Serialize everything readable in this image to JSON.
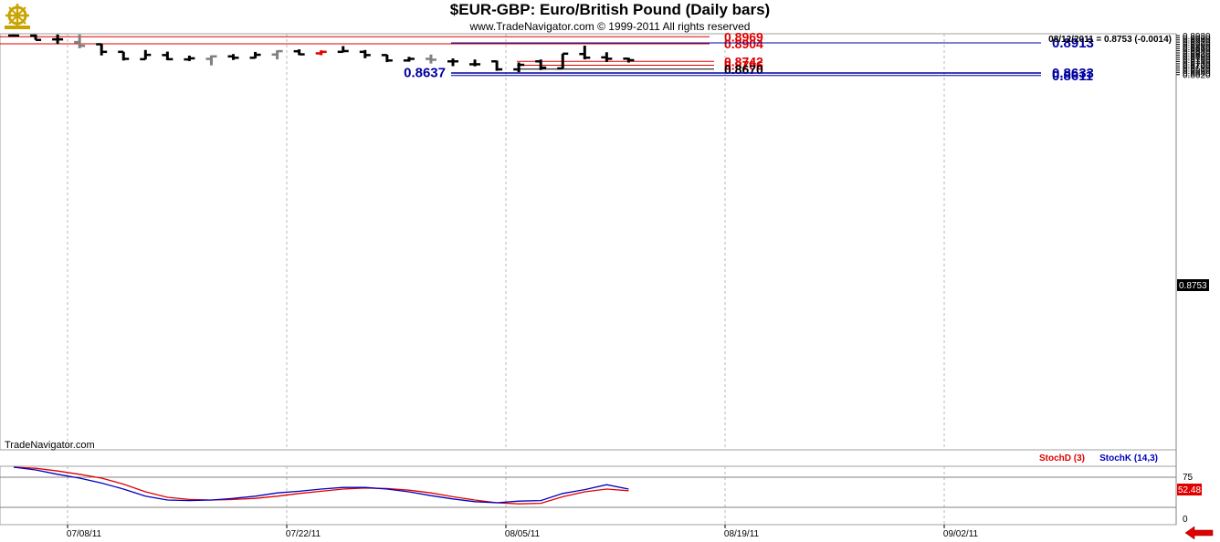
{
  "header": {
    "title": "$EUR-GBP:  Euro/British Pound  (Daily bars)",
    "subtitle": "www.TradeNavigator.com © 1999-2011 All rights reserved",
    "logo_icon": "golden-ship-wheel-icon"
  },
  "watermark": "TradeNavigator.com",
  "last_bar_readout": "08/12/2011 = 0.8753 (-0.0014)",
  "price_axis": {
    "ticks": [
      "0.8980",
      "0.8960",
      "0.8940",
      "0.8920",
      "0.8900",
      "0.8880",
      "0.8860",
      "0.8840",
      "0.8820",
      "0.8800",
      "0.8780",
      "0.8760",
      "0.8740",
      "0.8720",
      "0.8700",
      "0.8680",
      "0.8660",
      "0.8640",
      "0.8620"
    ],
    "current_price_label": "0.8753"
  },
  "x_axis": {
    "ticks": [
      "07/08/11",
      "07/22/11",
      "08/05/11",
      "08/19/11",
      "09/02/11"
    ]
  },
  "colors": {
    "up_bar": "#000000",
    "gray_bar": "#808080",
    "red_bar": "#e00000",
    "red_level": "#e00000",
    "blue_level": "#0000a0",
    "black_level": "#000000",
    "stochD": "#e00000",
    "stochK": "#0000c0",
    "nav_arrow": "#e00000"
  },
  "levels": [
    {
      "value": 0.8969,
      "label": "0.8969",
      "color": "red"
    },
    {
      "value": 0.8904,
      "label": "0.8904",
      "color": "red"
    },
    {
      "value": 0.8913,
      "label": "0.8913",
      "color": "blue"
    },
    {
      "value": 0.8742,
      "label": "0.8742",
      "color": "red"
    },
    {
      "value": 0.8706,
      "label": "0.8706",
      "color": "red"
    },
    {
      "value": 0.867,
      "label": "0.8670",
      "color": "black"
    },
    {
      "value": 0.8637,
      "label": "0.8637",
      "color": "blue"
    },
    {
      "value": 0.8633,
      "label": "0.8633",
      "color": "blue"
    },
    {
      "value": 0.8611,
      "label": "0.8611",
      "color": "blue"
    }
  ],
  "indicator": {
    "stochD_label": "StochD (3)",
    "stochK_label": "StochK (14,3)",
    "ticks": [
      "75",
      "0"
    ],
    "current_value_label": "52.48"
  },
  "chart_data": {
    "type": "ohlc",
    "title": "$EUR-GBP:  Euro/British Pound  (Daily bars)",
    "x_ticks": [
      "07/08/11",
      "07/22/11",
      "08/05/11",
      "08/19/11",
      "09/02/11"
    ],
    "ylim": [
      0.8605,
      0.8985
    ],
    "bars": [
      {
        "o": 0.898,
        "h": 0.899,
        "l": 0.8975,
        "c": 0.898,
        "color": "black"
      },
      {
        "o": 0.898,
        "h": 0.899,
        "l": 0.894,
        "c": 0.894,
        "color": "black"
      },
      {
        "o": 0.8945,
        "h": 0.899,
        "l": 0.8903,
        "c": 0.8945,
        "color": "black"
      },
      {
        "o": 0.892,
        "h": 0.899,
        "l": 0.8863,
        "c": 0.8885,
        "color": "gray"
      },
      {
        "o": 0.89,
        "h": 0.8903,
        "l": 0.8797,
        "c": 0.883,
        "color": "black"
      },
      {
        "o": 0.883,
        "h": 0.883,
        "l": 0.875,
        "c": 0.8765,
        "color": "black"
      },
      {
        "o": 0.8762,
        "h": 0.8847,
        "l": 0.876,
        "c": 0.8802,
        "color": "black"
      },
      {
        "o": 0.88,
        "h": 0.8832,
        "l": 0.8753,
        "c": 0.8762,
        "color": "black"
      },
      {
        "o": 0.876,
        "h": 0.8795,
        "l": 0.8745,
        "c": 0.877,
        "color": "black"
      },
      {
        "o": 0.8765,
        "h": 0.8797,
        "l": 0.8705,
        "c": 0.8788,
        "color": "gray"
      },
      {
        "o": 0.8788,
        "h": 0.8809,
        "l": 0.8755,
        "c": 0.8775,
        "color": "black"
      },
      {
        "o": 0.8775,
        "h": 0.8829,
        "l": 0.877,
        "c": 0.8803,
        "color": "black"
      },
      {
        "o": 0.8805,
        "h": 0.8844,
        "l": 0.876,
        "c": 0.8836,
        "color": "gray"
      },
      {
        "o": 0.8835,
        "h": 0.8853,
        "l": 0.88,
        "c": 0.8807,
        "color": "black"
      },
      {
        "o": 0.8816,
        "h": 0.8844,
        "l": 0.8799,
        "c": 0.883,
        "color": "red"
      },
      {
        "o": 0.883,
        "h": 0.8883,
        "l": 0.8825,
        "c": 0.8837,
        "color": "black"
      },
      {
        "o": 0.883,
        "h": 0.8847,
        "l": 0.8771,
        "c": 0.88,
        "color": "black"
      },
      {
        "o": 0.88,
        "h": 0.8804,
        "l": 0.8735,
        "c": 0.875,
        "color": "black"
      },
      {
        "o": 0.875,
        "h": 0.8784,
        "l": 0.8739,
        "c": 0.8765,
        "color": "black"
      },
      {
        "o": 0.8765,
        "h": 0.8805,
        "l": 0.8722,
        "c": 0.8757,
        "color": "gray"
      },
      {
        "o": 0.8742,
        "h": 0.8769,
        "l": 0.8698,
        "c": 0.8742,
        "color": "black"
      },
      {
        "o": 0.8715,
        "h": 0.8759,
        "l": 0.8696,
        "c": 0.8715,
        "color": "black"
      },
      {
        "o": 0.8742,
        "h": 0.8749,
        "l": 0.8655,
        "c": 0.8668,
        "color": "black"
      },
      {
        "o": 0.8668,
        "h": 0.8732,
        "l": 0.8642,
        "c": 0.871,
        "color": "black"
      },
      {
        "o": 0.8742,
        "h": 0.8759,
        "l": 0.8662,
        "c": 0.8684,
        "color": "black"
      },
      {
        "o": 0.8677,
        "h": 0.8813,
        "l": 0.8676,
        "c": 0.8813,
        "color": "black"
      },
      {
        "o": 0.881,
        "h": 0.8887,
        "l": 0.876,
        "c": 0.8776,
        "color": "black"
      },
      {
        "o": 0.8779,
        "h": 0.8826,
        "l": 0.8736,
        "c": 0.8766,
        "color": "black"
      },
      {
        "o": 0.8767,
        "h": 0.8775,
        "l": 0.8731,
        "c": 0.8753,
        "color": "black"
      }
    ],
    "stochastic": {
      "ylim": [
        0,
        100
      ],
      "ticks": [
        75,
        0
      ],
      "series": [
        {
          "name": "StochD (3)",
          "values": [
            95,
            93,
            88,
            82,
            75,
            64,
            50,
            40,
            36,
            35,
            36,
            38,
            42,
            47,
            51,
            55,
            57,
            56,
            53,
            48,
            41,
            35,
            30,
            28,
            29,
            41,
            50,
            55,
            52
          ]
        },
        {
          "name": "StochK (14,3)",
          "values": [
            95,
            90,
            82,
            75,
            66,
            55,
            42,
            35,
            34,
            35,
            38,
            42,
            48,
            51,
            55,
            58,
            58,
            55,
            50,
            43,
            37,
            32,
            30,
            33,
            34,
            47,
            54,
            63,
            55
          ]
        }
      ]
    }
  }
}
